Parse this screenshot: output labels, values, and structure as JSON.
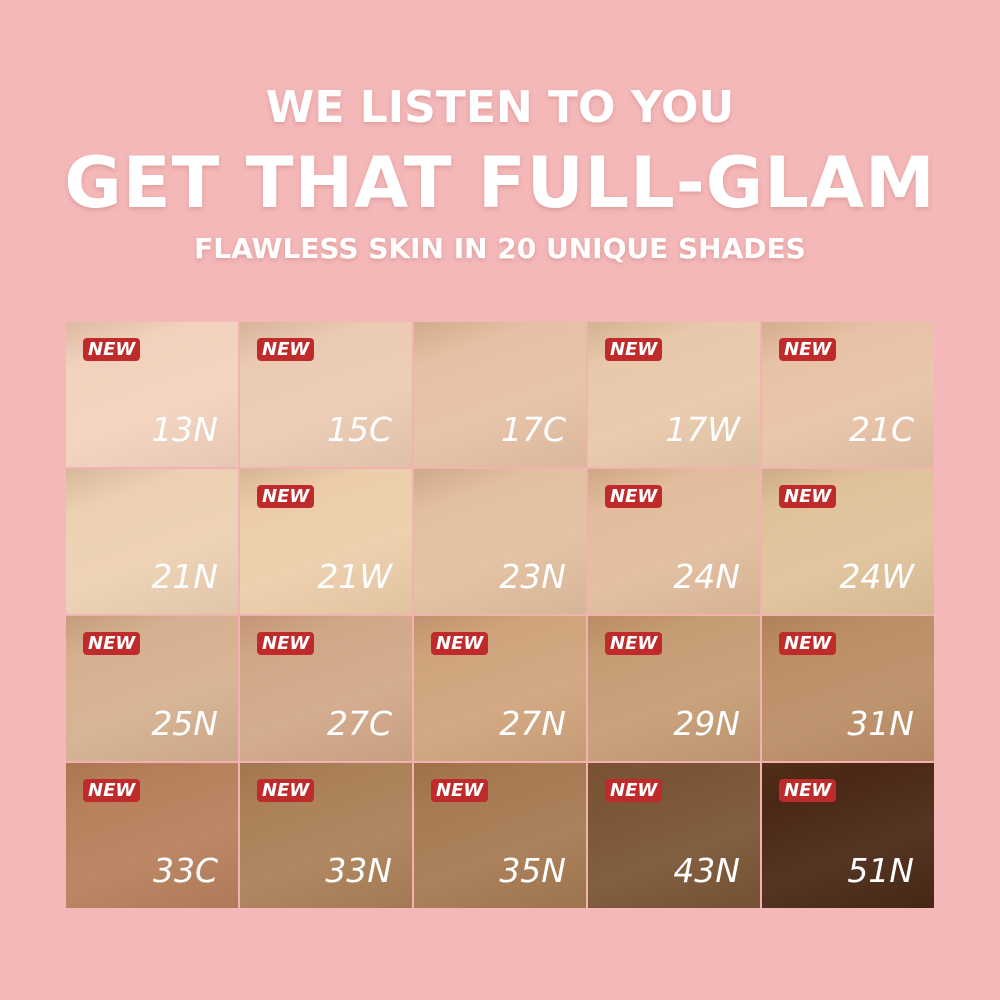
{
  "headline": {
    "line1": "WE LISTEN TO YOU",
    "line2": "GET THAT FULL-GLAM",
    "line3": "FLAWLESS SKIN IN 20 UNIQUE SHADES"
  },
  "badge_label": "NEW",
  "colors": {
    "background": "#f4b8b8",
    "badge": "#bf2b2b"
  },
  "shades": [
    {
      "name": "13N",
      "new": true,
      "color": "#f2d2bd"
    },
    {
      "name": "15C",
      "new": true,
      "color": "#ebcab2"
    },
    {
      "name": "17C",
      "new": false,
      "color": "#e6c0a4"
    },
    {
      "name": "17W",
      "new": true,
      "color": "#e8c8aa"
    },
    {
      "name": "21C",
      "new": true,
      "color": "#e8c2a6"
    },
    {
      "name": "21N",
      "new": false,
      "color": "#ecd0b2"
    },
    {
      "name": "21W",
      "new": true,
      "color": "#eccda8"
    },
    {
      "name": "23N",
      "new": false,
      "color": "#e2bf9f"
    },
    {
      "name": "24N",
      "new": true,
      "color": "#e2bc9c"
    },
    {
      "name": "24W",
      "new": true,
      "color": "#e0c29a"
    },
    {
      "name": "25N",
      "new": true,
      "color": "#d6b090"
    },
    {
      "name": "27C",
      "new": true,
      "color": "#d2a788"
    },
    {
      "name": "27N",
      "new": true,
      "color": "#cfa47c"
    },
    {
      "name": "29N",
      "new": true,
      "color": "#c69c74"
    },
    {
      "name": "31N",
      "new": true,
      "color": "#bb8e66"
    },
    {
      "name": "33C",
      "new": true,
      "color": "#b7805c"
    },
    {
      "name": "33N",
      "new": true,
      "color": "#ab8058"
    },
    {
      "name": "35N",
      "new": true,
      "color": "#a67a52"
    },
    {
      "name": "43N",
      "new": true,
      "color": "#7a5535"
    },
    {
      "name": "51N",
      "new": true,
      "color": "#4a2815"
    }
  ]
}
